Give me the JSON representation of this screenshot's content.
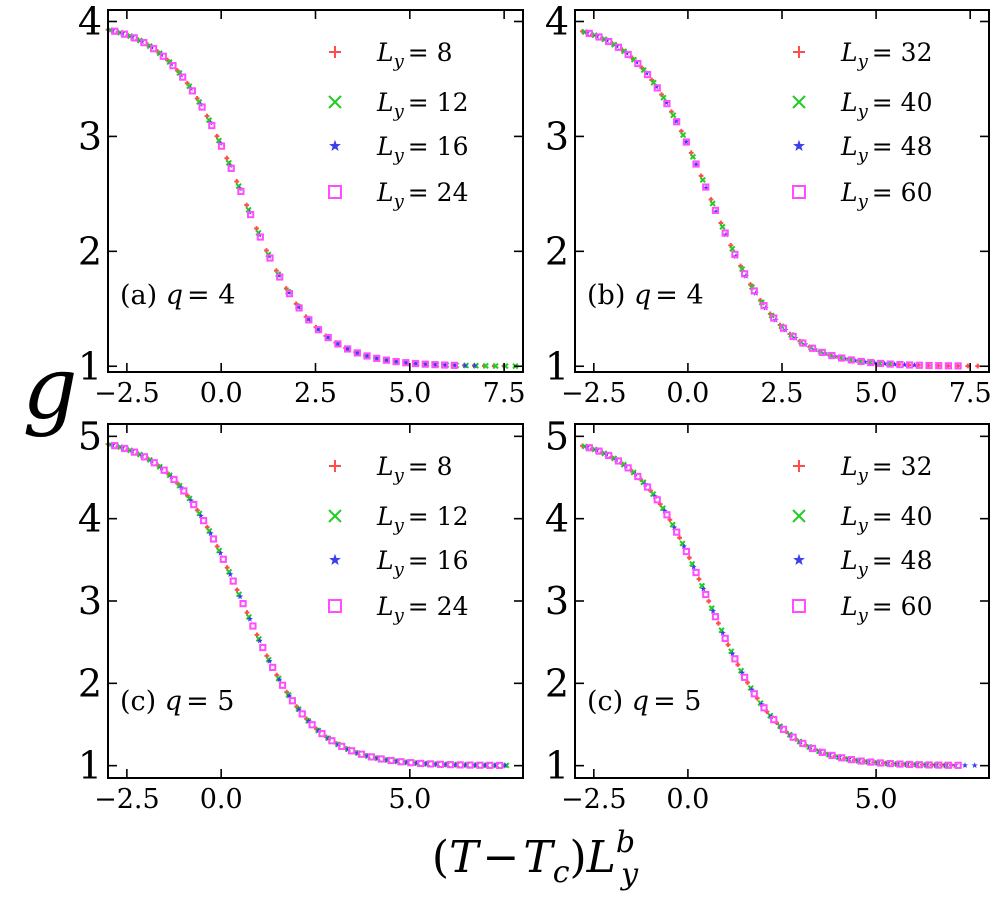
{
  "figure": {
    "ylabel": "g",
    "xlabel": "(T−T_c)L_y^b",
    "xlabel_parts": {
      "open": "(",
      "T1": "T",
      "minus": "−",
      "T2": "T",
      "c": "c",
      "close": ")",
      "L": "L",
      "y": "y",
      "b": "b"
    }
  },
  "colors": {
    "Ly8": "#ff4d4d",
    "Ly12": "#22cc22",
    "Ly16": "#3d3df0",
    "Ly24": "#ff4dff",
    "Ly32": "#ff4d4d",
    "Ly40": "#22cc22",
    "Ly48": "#3d3df0",
    "Ly60": "#ff4dff"
  },
  "chart_data": [
    {
      "type": "scatter",
      "panel_label": "(a) q = 4",
      "panel_prefix": "(a)",
      "panel_q": "q",
      "panel_eq": "= 4",
      "xlim": [
        -3.0,
        8.0
      ],
      "ylim": [
        0.95,
        4.1
      ],
      "xticks": [
        -2.5,
        0.0,
        2.5,
        5.0,
        7.5
      ],
      "xtick_labels": [
        "−2.5",
        "0.0",
        "2.5",
        "5.0",
        "7.5"
      ],
      "yticks": [
        1,
        2,
        3,
        4
      ],
      "ytick_labels": [
        "1",
        "2",
        "3",
        "4"
      ],
      "q": 4,
      "legend_position": "top-right",
      "series": [
        {
          "name": "L_y = 8",
          "L": "8",
          "marker": "plus",
          "color": "#ff4d4d",
          "x_range": [
            -3.0,
            7.5
          ]
        },
        {
          "name": "L_y = 12",
          "L": "12",
          "marker": "cross",
          "color": "#22cc22",
          "x_range": [
            -3.0,
            8.0
          ]
        },
        {
          "name": "L_y = 16",
          "L": "16",
          "marker": "star",
          "color": "#3d3df0",
          "x_range": [
            -3.0,
            6.6
          ]
        },
        {
          "name": "L_y = 24",
          "L": "24",
          "marker": "square",
          "color": "#ff4dff",
          "x_range": [
            -3.0,
            6.0
          ]
        }
      ]
    },
    {
      "type": "scatter",
      "panel_label": "(b) q = 4",
      "panel_prefix": "(b)",
      "panel_q": "q",
      "panel_eq": "= 4",
      "xlim": [
        -3.0,
        8.0
      ],
      "ylim": [
        0.95,
        4.1
      ],
      "xticks": [
        -2.5,
        0.0,
        2.5,
        5.0,
        7.5
      ],
      "xtick_labels": [
        "−2.5",
        "0.0",
        "2.5",
        "5.0",
        "7.5"
      ],
      "yticks": [
        1,
        2,
        3,
        4
      ],
      "ytick_labels": [
        "1",
        "2",
        "3",
        "4"
      ],
      "q": 4,
      "legend_position": "top-right",
      "series": [
        {
          "name": "L_y = 32",
          "L": "32",
          "marker": "plus",
          "color": "#ff4d4d",
          "x_range": [
            -2.8,
            7.7
          ]
        },
        {
          "name": "L_y = 40",
          "L": "40",
          "marker": "cross",
          "color": "#22cc22",
          "x_range": [
            -2.8,
            5.3
          ]
        },
        {
          "name": "L_y = 48",
          "L": "48",
          "marker": "star",
          "color": "#3d3df0",
          "x_range": [
            -2.8,
            5.9
          ]
        },
        {
          "name": "L_y = 60",
          "L": "60",
          "marker": "square",
          "color": "#ff4dff",
          "x_range": [
            -2.8,
            7.0
          ]
        }
      ]
    },
    {
      "type": "scatter",
      "panel_label": "(c) q = 5",
      "panel_prefix": "(c)",
      "panel_q": "q",
      "panel_eq": "= 5",
      "xlim": [
        -3.0,
        8.0
      ],
      "ylim": [
        0.85,
        5.15
      ],
      "xticks": [
        -2.5,
        0.0,
        5.0
      ],
      "xtick_labels": [
        "−2.5",
        "0.0",
        "5.0"
      ],
      "yticks": [
        1,
        2,
        3,
        4,
        5
      ],
      "ytick_labels": [
        "1",
        "2",
        "3",
        "4",
        "5"
      ],
      "q": 5,
      "legend_position": "top-right",
      "series": [
        {
          "name": "L_y = 8",
          "L": "8",
          "marker": "plus",
          "color": "#ff4d4d",
          "x_range": [
            -3.0,
            7.0
          ]
        },
        {
          "name": "L_y = 12",
          "L": "12",
          "marker": "cross",
          "color": "#22cc22",
          "x_range": [
            -3.0,
            7.5
          ]
        },
        {
          "name": "L_y = 16",
          "L": "16",
          "marker": "star",
          "color": "#3d3df0",
          "x_range": [
            -3.0,
            7.4
          ]
        },
        {
          "name": "L_y = 24",
          "L": "24",
          "marker": "square",
          "color": "#ff4dff",
          "x_range": [
            -3.0,
            7.2
          ]
        }
      ]
    },
    {
      "type": "scatter",
      "panel_label": "(c) q = 5",
      "panel_prefix": "(c)",
      "panel_q": "q",
      "panel_eq": "= 5",
      "xlim": [
        -3.0,
        8.0
      ],
      "ylim": [
        0.85,
        5.15
      ],
      "xticks": [
        -2.5,
        0.0,
        5.0
      ],
      "xtick_labels": [
        "−2.5",
        "0.0",
        "5.0"
      ],
      "yticks": [
        1,
        2,
        3,
        4,
        5
      ],
      "ytick_labels": [
        "1",
        "2",
        "3",
        "4",
        "5"
      ],
      "q": 5,
      "legend_position": "top-right",
      "series": [
        {
          "name": "L_y = 32",
          "L": "32",
          "marker": "plus",
          "color": "#ff4d4d",
          "x_range": [
            -2.8,
            7.0
          ]
        },
        {
          "name": "L_y = 40",
          "L": "40",
          "marker": "cross",
          "color": "#22cc22",
          "x_range": [
            -2.8,
            6.8
          ]
        },
        {
          "name": "L_y = 48",
          "L": "48",
          "marker": "star",
          "color": "#3d3df0",
          "x_range": [
            -2.8,
            7.5
          ]
        },
        {
          "name": "L_y = 60",
          "L": "60",
          "marker": "square",
          "color": "#ff4dff",
          "x_range": [
            -2.8,
            7.0
          ]
        }
      ]
    }
  ]
}
